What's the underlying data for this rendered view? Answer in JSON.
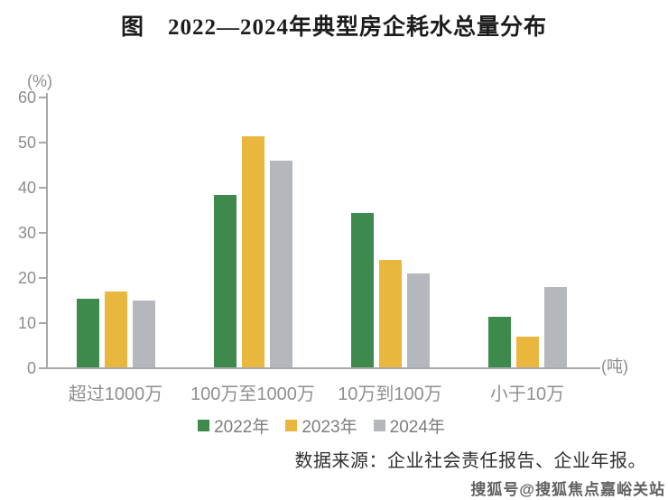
{
  "page": {
    "title": "图　2022—2024年典型房企耗水总量分布",
    "source_note": "数据来源：企业社会责任报告、企业年报。",
    "watermark": "搜狐号@搜狐焦点嘉峪关站"
  },
  "chart_data": {
    "type": "bar",
    "title": "2022—2024年典型房企耗水总量分布",
    "y_unit_label": "(%)",
    "x_unit_label": "(吨)",
    "categories": [
      "超过1000万",
      "100万至1000万",
      "10万到100万",
      "小于10万"
    ],
    "series": [
      {
        "name": "2022年",
        "color": "#3e8a4d",
        "values": [
          15.5,
          38.5,
          34.5,
          11.5
        ]
      },
      {
        "name": "2023年",
        "color": "#e9b63e",
        "values": [
          17,
          51.5,
          24,
          7
        ]
      },
      {
        "name": "2024年",
        "color": "#b4b7bb",
        "values": [
          15,
          46,
          21,
          18
        ]
      }
    ],
    "ylim": [
      0,
      60
    ],
    "yticks": [
      0,
      10,
      20,
      30,
      40,
      50,
      60
    ],
    "grid": false,
    "legend_position": "bottom",
    "axis_color": "#a8a8a8"
  }
}
